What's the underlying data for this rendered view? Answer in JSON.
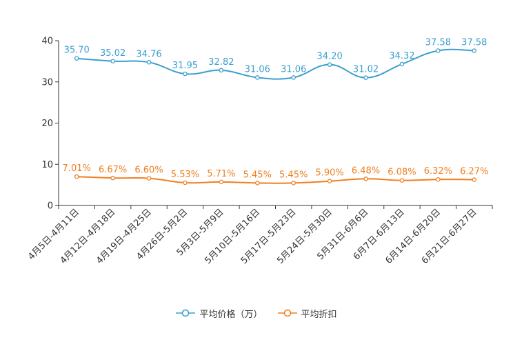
{
  "chart_data": {
    "type": "line",
    "title": "",
    "xlabel": "",
    "ylabel": "",
    "ylim": [
      0,
      40
    ],
    "yticks": [
      0,
      10,
      20,
      30,
      40
    ],
    "grid": false,
    "legend_position": "bottom-center",
    "categories": [
      "4月5日-4月11日",
      "4月12日-4月18日",
      "4月19日-4月25日",
      "4月26日-5月2日",
      "5月3日-5月9日",
      "5月10日-5月16日",
      "5月17日-5月23日",
      "5月24日-5月30日",
      "5月31日-6月6日",
      "6月7日-6月13日",
      "6月14日-6月20日",
      "6月21日-6月27日"
    ],
    "series": [
      {
        "name": "平均价格（万）",
        "color": "#3a9fcf",
        "values": [
          35.7,
          35.02,
          34.76,
          31.95,
          32.82,
          31.06,
          31.06,
          34.2,
          31.02,
          34.32,
          37.58,
          37.58
        ],
        "labels": [
          "35.70",
          "35.02",
          "34.76",
          "31.95",
          "32.82",
          "31.06",
          "31.06",
          "34.20",
          "31.02",
          "34.32",
          "37.58",
          "37.58"
        ]
      },
      {
        "name": "平均折扣",
        "color": "#f07f1f",
        "values": [
          7.01,
          6.67,
          6.6,
          5.53,
          5.71,
          5.45,
          5.45,
          5.9,
          6.48,
          6.08,
          6.32,
          6.27
        ],
        "labels": [
          "7.01%",
          "6.67%",
          "6.60%",
          "5.53%",
          "5.71%",
          "5.45%",
          "5.45%",
          "5.90%",
          "6.48%",
          "6.08%",
          "6.32%",
          "6.27%"
        ]
      }
    ]
  }
}
